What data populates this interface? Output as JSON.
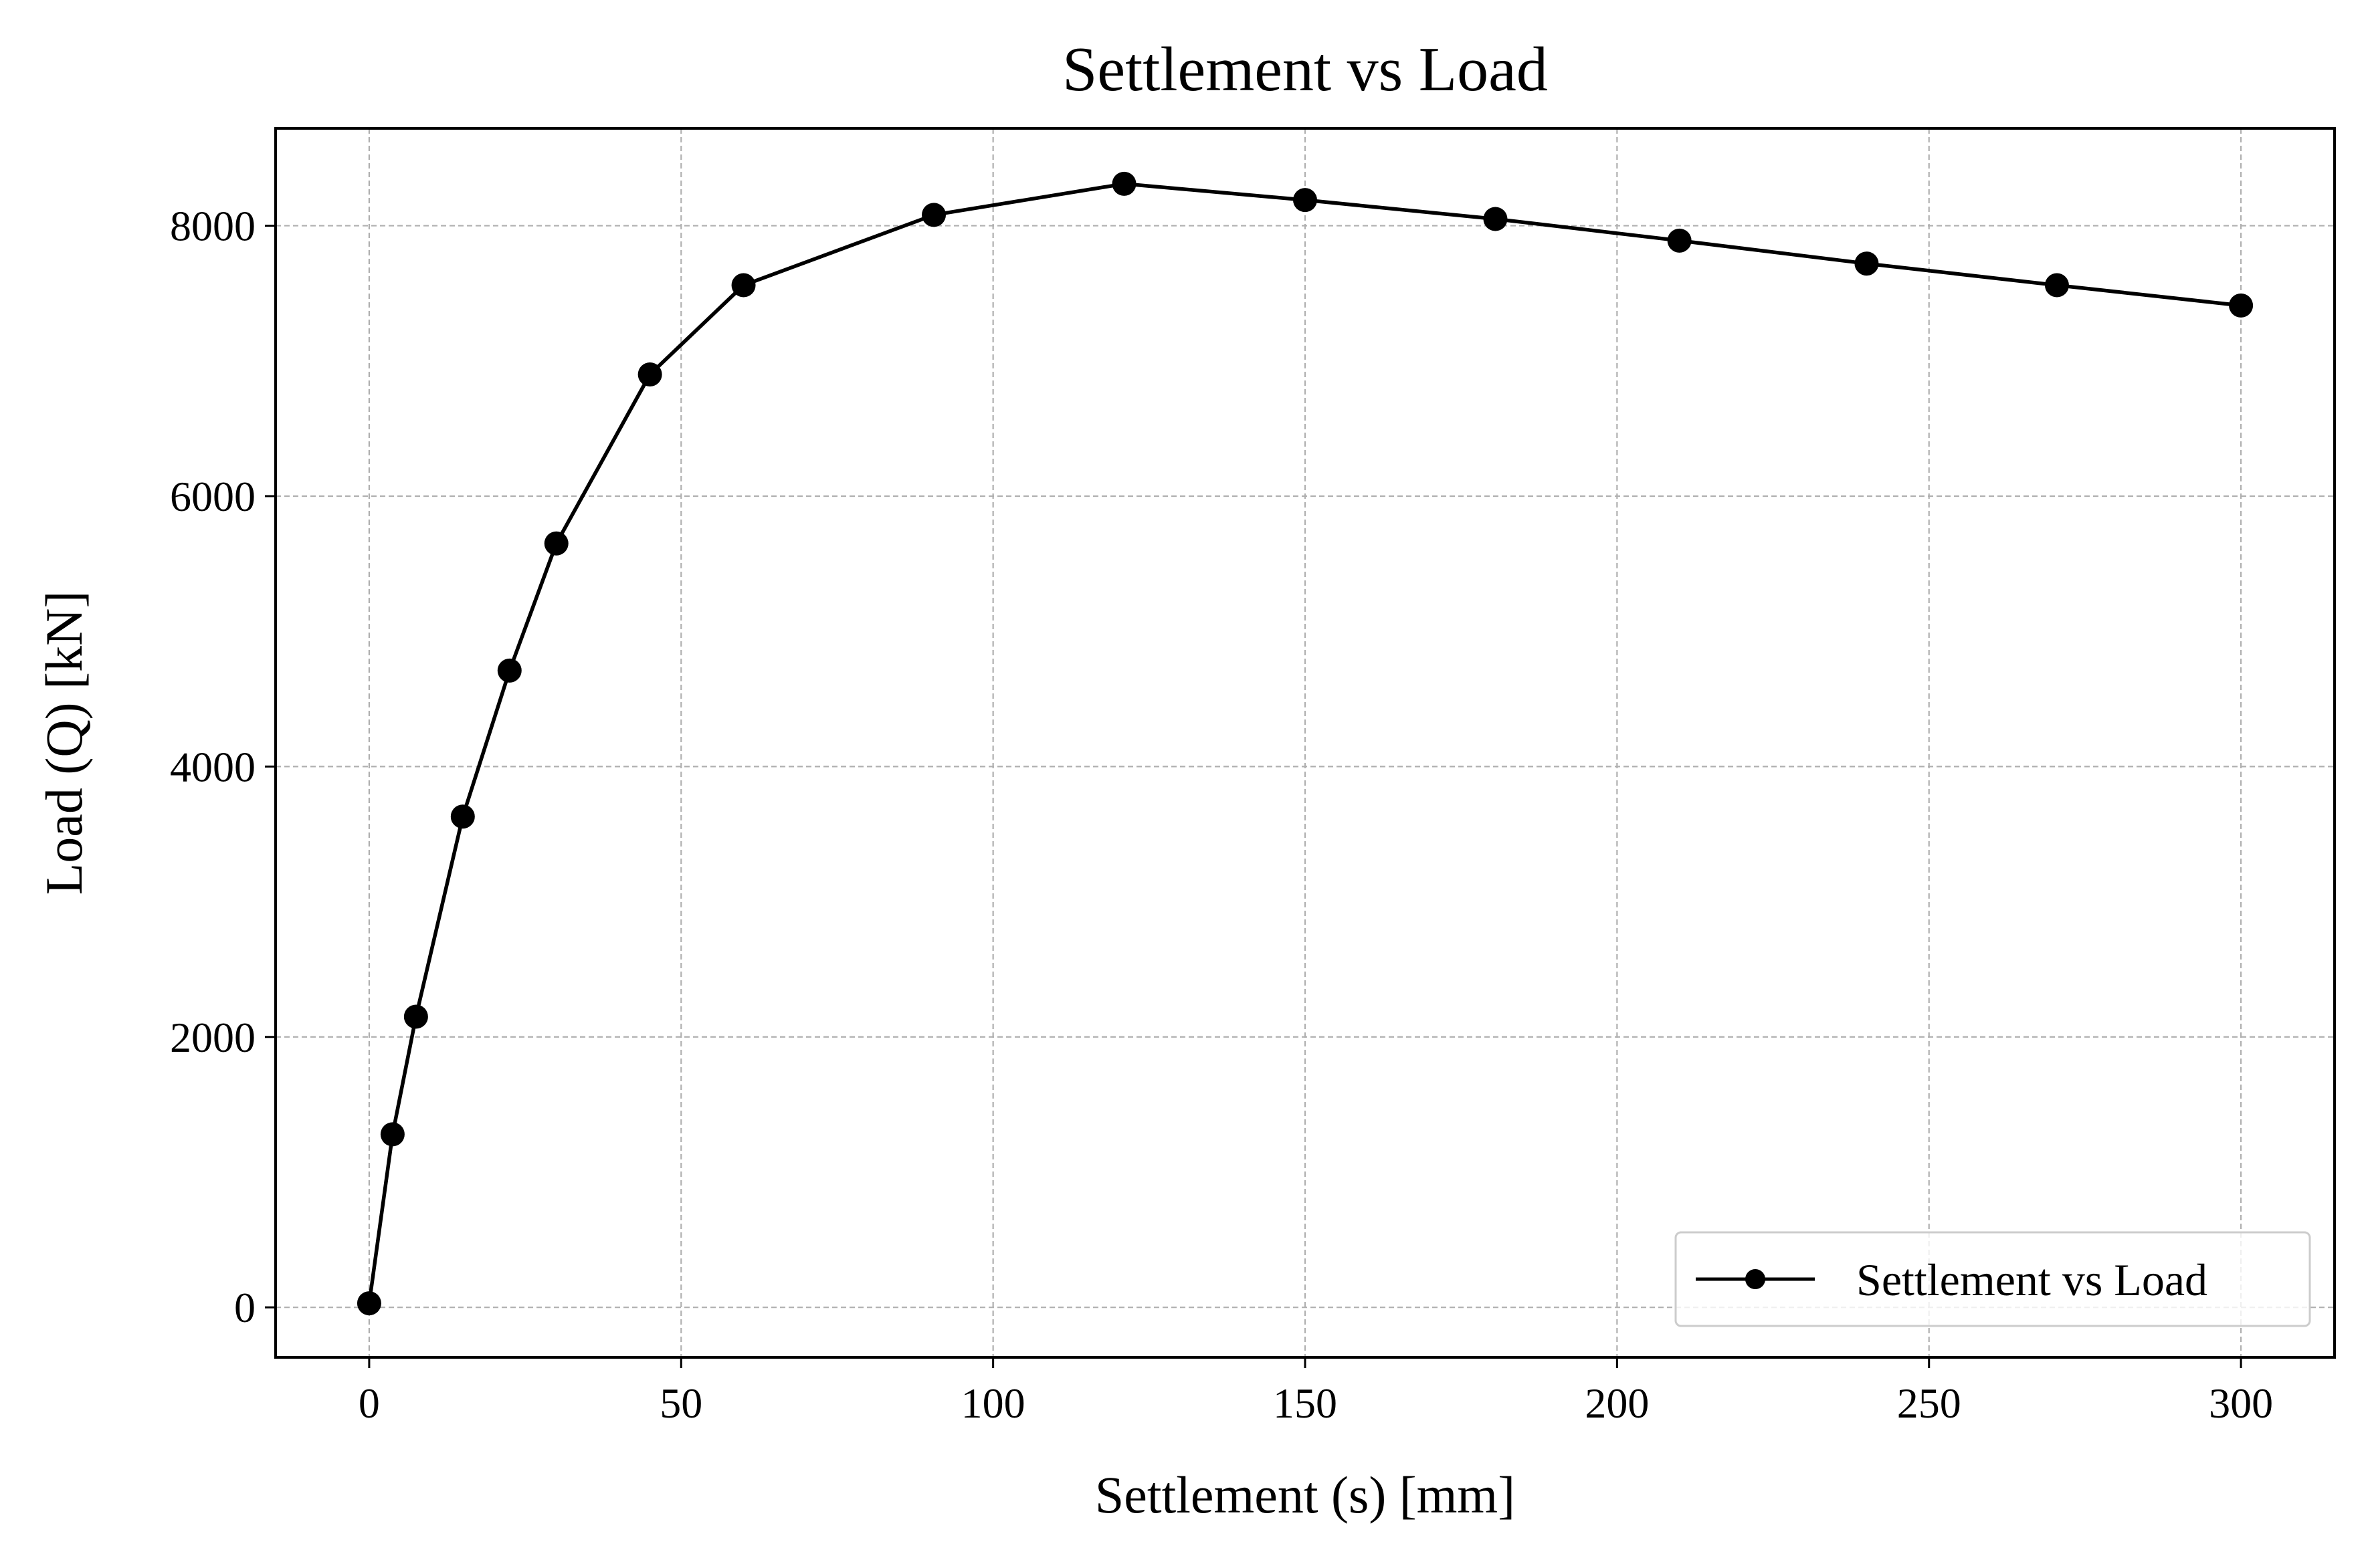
{
  "chart_data": {
    "type": "line",
    "title": "Settlement vs Load",
    "xlabel": "Settlement (s) [mm]",
    "ylabel": "Load (Q) [kN]",
    "xlim": [
      -15,
      315
    ],
    "ylim": [
      -370,
      8720
    ],
    "xticks": [
      0,
      50,
      100,
      150,
      200,
      250,
      300
    ],
    "yticks": [
      0,
      2000,
      4000,
      6000,
      8000
    ],
    "grid": true,
    "legend_position": "lower-right",
    "series": [
      {
        "name": "Settlement vs Load",
        "color": "#000000",
        "marker": "circle",
        "x": [
          0,
          3.75,
          7.5,
          15,
          22.5,
          30,
          45,
          60,
          90.5,
          121,
          150,
          180.5,
          210,
          240,
          270.5,
          300
        ],
        "y": [
          30,
          1280,
          2150,
          3630,
          4710,
          5650,
          6900,
          7560,
          8080,
          8310,
          8190,
          8050,
          7890,
          7720,
          7560,
          7410
        ]
      }
    ]
  }
}
